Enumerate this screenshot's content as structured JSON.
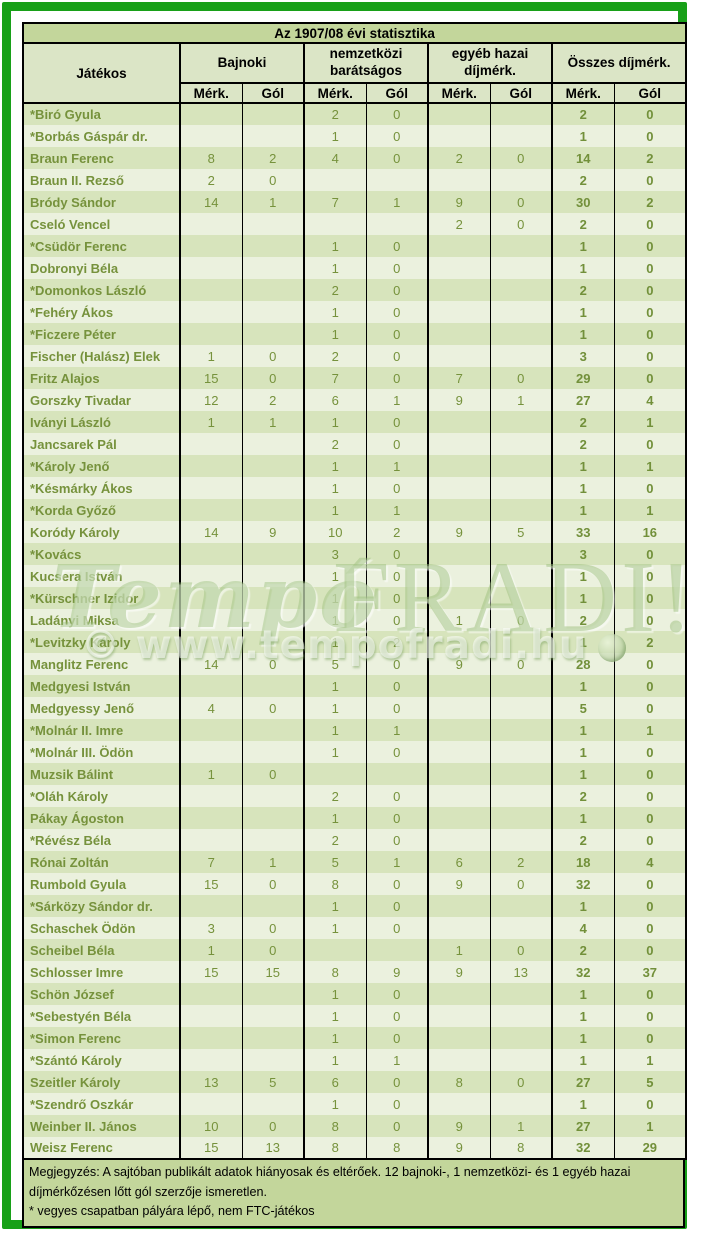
{
  "frame": {
    "border_color": "#18a018"
  },
  "table": {
    "title": "Az 1907/08 évi statisztika",
    "player_header": "Játékos",
    "groups": [
      {
        "label": "Bajnoki"
      },
      {
        "label": "nemzetközi barátságos"
      },
      {
        "label": "egyéb hazai díjmérk."
      },
      {
        "label": "Összes díjmérk."
      }
    ],
    "sub_headers": {
      "matches": "Mérk.",
      "goals": "Gól"
    },
    "column_keys": [
      "bajnoki-merk",
      "bajnoki-gol",
      "nemzetkozi-merk",
      "nemzetkozi-gol",
      "egyeb-merk",
      "egyeb-gol",
      "osszes-merk",
      "osszes-gol"
    ],
    "rows": [
      {
        "name": "*Biró Gyula",
        "values": [
          "",
          "",
          "2",
          "0",
          "",
          "",
          "2",
          "0"
        ]
      },
      {
        "name": "*Borbás Gáspár dr.",
        "values": [
          "",
          "",
          "1",
          "0",
          "",
          "",
          "1",
          "0"
        ]
      },
      {
        "name": "Braun Ferenc",
        "values": [
          "8",
          "2",
          "4",
          "0",
          "2",
          "0",
          "14",
          "2"
        ]
      },
      {
        "name": "Braun II. Rezső",
        "values": [
          "2",
          "0",
          "",
          "",
          "",
          "",
          "2",
          "0"
        ]
      },
      {
        "name": "Bródy Sándor",
        "values": [
          "14",
          "1",
          "7",
          "1",
          "9",
          "0",
          "30",
          "2"
        ]
      },
      {
        "name": "Cseló Vencel",
        "values": [
          "",
          "",
          "",
          "",
          "2",
          "0",
          "2",
          "0"
        ]
      },
      {
        "name": "*Csüdör Ferenc",
        "values": [
          "",
          "",
          "1",
          "0",
          "",
          "",
          "1",
          "0"
        ]
      },
      {
        "name": "Dobronyi Béla",
        "values": [
          "",
          "",
          "1",
          "0",
          "",
          "",
          "1",
          "0"
        ]
      },
      {
        "name": "*Domonkos László",
        "values": [
          "",
          "",
          "2",
          "0",
          "",
          "",
          "2",
          "0"
        ]
      },
      {
        "name": "*Fehéry Ákos",
        "values": [
          "",
          "",
          "1",
          "0",
          "",
          "",
          "1",
          "0"
        ]
      },
      {
        "name": "*Ficzere Péter",
        "values": [
          "",
          "",
          "1",
          "0",
          "",
          "",
          "1",
          "0"
        ]
      },
      {
        "name": "Fischer (Halász) Elek",
        "values": [
          "1",
          "0",
          "2",
          "0",
          "",
          "",
          "3",
          "0"
        ]
      },
      {
        "name": "Fritz Alajos",
        "values": [
          "15",
          "0",
          "7",
          "0",
          "7",
          "0",
          "29",
          "0"
        ]
      },
      {
        "name": "Gorszky Tivadar",
        "values": [
          "12",
          "2",
          "6",
          "1",
          "9",
          "1",
          "27",
          "4"
        ]
      },
      {
        "name": "Iványi László",
        "values": [
          "1",
          "1",
          "1",
          "0",
          "",
          "",
          "2",
          "1"
        ]
      },
      {
        "name": "Jancsarek Pál",
        "values": [
          "",
          "",
          "2",
          "0",
          "",
          "",
          "2",
          "0"
        ]
      },
      {
        "name": "*Károly Jenő",
        "values": [
          "",
          "",
          "1",
          "1",
          "",
          "",
          "1",
          "1"
        ]
      },
      {
        "name": "*Késmárky Ákos",
        "values": [
          "",
          "",
          "1",
          "0",
          "",
          "",
          "1",
          "0"
        ]
      },
      {
        "name": "*Korda Győző",
        "values": [
          "",
          "",
          "1",
          "1",
          "",
          "",
          "1",
          "1"
        ]
      },
      {
        "name": "Koródy Károly",
        "values": [
          "14",
          "9",
          "10",
          "2",
          "9",
          "5",
          "33",
          "16"
        ]
      },
      {
        "name": "*Kovács",
        "values": [
          "",
          "",
          "3",
          "0",
          "",
          "",
          "3",
          "0"
        ]
      },
      {
        "name": "Kucsera István",
        "values": [
          "",
          "",
          "1",
          "0",
          "",
          "",
          "1",
          "0"
        ]
      },
      {
        "name": "*Kürschner Izidor",
        "values": [
          "",
          "",
          "1",
          "0",
          "",
          "",
          "1",
          "0"
        ]
      },
      {
        "name": "Ladányi Miksa",
        "values": [
          "",
          "",
          "1",
          "0",
          "1",
          "0",
          "2",
          "0"
        ]
      },
      {
        "name": "*Levitzky Károly",
        "values": [
          "",
          "",
          "1",
          "2",
          "",
          "",
          "1",
          "2"
        ]
      },
      {
        "name": "Manglitz Ferenc",
        "values": [
          "14",
          "0",
          "5",
          "0",
          "9",
          "0",
          "28",
          "0"
        ]
      },
      {
        "name": "Medgyesi István",
        "values": [
          "",
          "",
          "1",
          "0",
          "",
          "",
          "1",
          "0"
        ]
      },
      {
        "name": "Medgyessy Jenő",
        "values": [
          "4",
          "0",
          "1",
          "0",
          "",
          "",
          "5",
          "0"
        ]
      },
      {
        "name": "*Molnár II. Imre",
        "values": [
          "",
          "",
          "1",
          "1",
          "",
          "",
          "1",
          "1"
        ]
      },
      {
        "name": "*Molnár III. Ödön",
        "values": [
          "",
          "",
          "1",
          "0",
          "",
          "",
          "1",
          "0"
        ]
      },
      {
        "name": "Muzsik Bálint",
        "values": [
          "1",
          "0",
          "",
          "",
          "",
          "",
          "1",
          "0"
        ]
      },
      {
        "name": "*Oláh Károly",
        "values": [
          "",
          "",
          "2",
          "0",
          "",
          "",
          "2",
          "0"
        ]
      },
      {
        "name": "Pákay Ágoston",
        "values": [
          "",
          "",
          "1",
          "0",
          "",
          "",
          "1",
          "0"
        ]
      },
      {
        "name": "*Révész Béla",
        "values": [
          "",
          "",
          "2",
          "0",
          "",
          "",
          "2",
          "0"
        ]
      },
      {
        "name": "Rónai Zoltán",
        "values": [
          "7",
          "1",
          "5",
          "1",
          "6",
          "2",
          "18",
          "4"
        ]
      },
      {
        "name": "Rumbold Gyula",
        "values": [
          "15",
          "0",
          "8",
          "0",
          "9",
          "0",
          "32",
          "0"
        ]
      },
      {
        "name": "*Sárközy Sándor dr.",
        "values": [
          "",
          "",
          "1",
          "0",
          "",
          "",
          "1",
          "0"
        ]
      },
      {
        "name": "Schaschek Ödön",
        "values": [
          "3",
          "0",
          "1",
          "0",
          "",
          "",
          "4",
          "0"
        ]
      },
      {
        "name": "Scheibel Béla",
        "values": [
          "1",
          "0",
          "",
          "",
          "1",
          "0",
          "2",
          "0"
        ]
      },
      {
        "name": "Schlosser Imre",
        "values": [
          "15",
          "15",
          "8",
          "9",
          "9",
          "13",
          "32",
          "37"
        ]
      },
      {
        "name": "Schön József",
        "values": [
          "",
          "",
          "1",
          "0",
          "",
          "",
          "1",
          "0"
        ]
      },
      {
        "name": "*Sebestyén Béla",
        "values": [
          "",
          "",
          "1",
          "0",
          "",
          "",
          "1",
          "0"
        ]
      },
      {
        "name": "*Simon Ferenc",
        "values": [
          "",
          "",
          "1",
          "0",
          "",
          "",
          "1",
          "0"
        ]
      },
      {
        "name": "*Szántó Károly",
        "values": [
          "",
          "",
          "1",
          "1",
          "",
          "",
          "1",
          "1"
        ]
      },
      {
        "name": "Szeitler Károly",
        "values": [
          "13",
          "5",
          "6",
          "0",
          "8",
          "0",
          "27",
          "5"
        ]
      },
      {
        "name": "*Szendrő Oszkár",
        "values": [
          "",
          "",
          "1",
          "0",
          "",
          "",
          "1",
          "0"
        ]
      },
      {
        "name": "Weinber II. János",
        "values": [
          "10",
          "0",
          "8",
          "0",
          "9",
          "1",
          "27",
          "1"
        ]
      },
      {
        "name": "Weisz Ferenc",
        "values": [
          "15",
          "13",
          "8",
          "8",
          "9",
          "8",
          "32",
          "29"
        ]
      }
    ]
  },
  "notes": {
    "line1": "Megjegyzés: A sajtóban publikált adatok hiányosak és eltérőek. 12 bajnoki-, 1 nemzetközi- és 1 egyéb hazai díjmérkőzésen lőtt gól szerzője ismeretlen.",
    "line2": "* vegyes csapatban pályára lépő, nem FTC-játékos"
  },
  "watermark": {
    "script_word": "Tempó",
    "brand_word": "FRADI!",
    "url": "© www.tempofradi.hu"
  },
  "colors": {
    "frame_green": "#18a018",
    "title_bar_bg": "#c3d69b",
    "header_bg": "#dbe5c6",
    "row_odd_bg": "#d7e4bc",
    "row_even_bg": "#ebf1de",
    "text_olive": "#76923c",
    "notes_bg": "#c3d69b"
  }
}
